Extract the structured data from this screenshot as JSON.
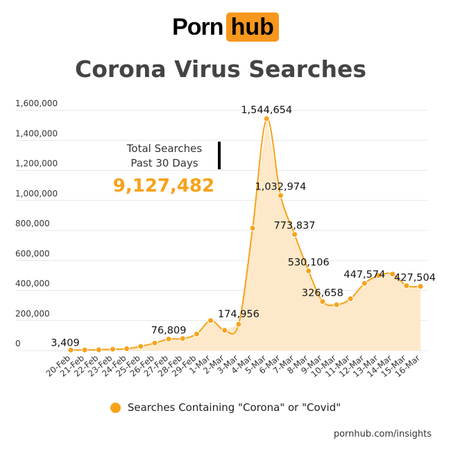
{
  "logo": {
    "word": "Porn",
    "box": "hub"
  },
  "source": "pornhub.com/insights",
  "legend_label": "Searches Containing \"Corona\" or \"Covid\"",
  "colors": {
    "accent": "#f7a21b",
    "area": "#fde9c9",
    "grid": "#e6e6e6",
    "title": "#444444"
  },
  "chart_data": {
    "type": "line",
    "title": "Corona Virus Searches",
    "categories": [
      "20-Feb",
      "21-Feb",
      "22-Feb",
      "23-Feb",
      "24-Feb",
      "25-Feb",
      "26-Feb",
      "27-Feb",
      "28-Feb",
      "29-Feb",
      "1-Mar",
      "2-Mar",
      "3-Mar",
      "4-Mar",
      "5-Mar",
      "6-Mar",
      "7-Mar",
      "8-Mar",
      "9-Mar",
      "10-Mar",
      "11-Mar",
      "12-Mar",
      "13-Mar",
      "14-Mar",
      "15-Mar",
      "16-Mar"
    ],
    "series": [
      {
        "name": "Searches Containing \"Corona\" or \"Covid\"",
        "values": [
          3409,
          4000,
          5000,
          9000,
          12000,
          28000,
          50000,
          76809,
          80000,
          110000,
          200000,
          135000,
          174956,
          815000,
          1544654,
          1032974,
          773837,
          530106,
          326658,
          305000,
          345000,
          447574,
          500000,
          510000,
          432000,
          427504
        ]
      }
    ],
    "labels": [
      {
        "index": 0,
        "text": "3,409"
      },
      {
        "index": 7,
        "text": "76,809"
      },
      {
        "index": 12,
        "text": "174,956"
      },
      {
        "index": 14,
        "text": "1,544,654"
      },
      {
        "index": 15,
        "text": "1,032,974"
      },
      {
        "index": 16,
        "text": "773,837"
      },
      {
        "index": 17,
        "text": "530,106"
      },
      {
        "index": 18,
        "text": "326,658"
      },
      {
        "index": 21,
        "text": "447,574"
      },
      {
        "index": 25,
        "text": "427,504"
      }
    ],
    "y_ticks": [
      "0",
      "200,000",
      "400,000",
      "600,000",
      "800,000",
      "1,000,000",
      "1,200,000",
      "1,400,000",
      "1,600,000"
    ],
    "ylim": [
      0,
      1600000
    ],
    "grid": true,
    "legend": "bottom",
    "annotation": {
      "line1": "Total Searches",
      "line2": "Past 30 Days",
      "value": "9,127,482"
    }
  }
}
